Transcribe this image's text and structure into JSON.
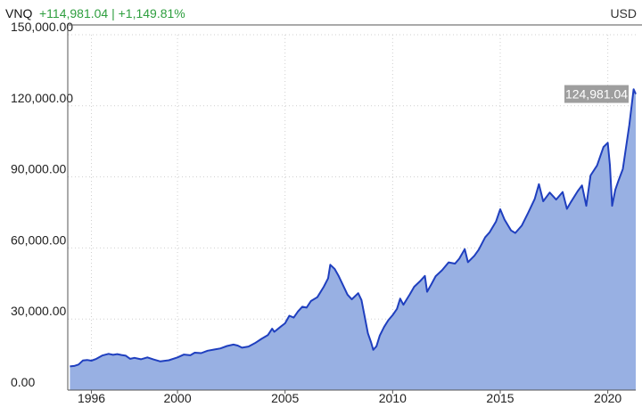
{
  "header": {
    "ticker": "VNQ",
    "change": "+114,981.04 | +1,149.81%",
    "currency": "USD"
  },
  "colors": {
    "line": "#1f3fbf",
    "fill": "#98b0e3",
    "positive": "#2e9e3e",
    "last_label_bg": "#9e9e9e"
  },
  "chart_data": {
    "type": "area",
    "title": "",
    "xlabel": "",
    "ylabel": "",
    "y_ticks": [
      "0.00",
      "30,000.00",
      "60,000.00",
      "90,000.00",
      "120,000.00",
      "150,000.00"
    ],
    "y_tick_values": [
      0,
      30000,
      60000,
      90000,
      120000,
      150000
    ],
    "x_ticks": [
      "1996",
      "2000",
      "2005",
      "2010",
      "2015",
      "2020"
    ],
    "x_tick_values": [
      1996,
      2000,
      2005,
      2010,
      2015,
      2020
    ],
    "xlim": [
      1994.9,
      2021.3
    ],
    "ylim": [
      0,
      150000
    ],
    "grid": true,
    "last_value_label": "124,981.04",
    "series": [
      {
        "values": [
          [
            1995.0,
            10000
          ],
          [
            1995.2,
            10200
          ],
          [
            1995.4,
            10800
          ],
          [
            1995.6,
            12500
          ],
          [
            1995.8,
            12700
          ],
          [
            1996.0,
            12400
          ],
          [
            1996.2,
            13100
          ],
          [
            1996.5,
            14600
          ],
          [
            1996.8,
            15300
          ],
          [
            1997.0,
            14900
          ],
          [
            1997.2,
            15200
          ],
          [
            1997.4,
            14800
          ],
          [
            1997.6,
            14500
          ],
          [
            1997.8,
            13200
          ],
          [
            1998.0,
            13600
          ],
          [
            1998.3,
            13000
          ],
          [
            1998.6,
            13800
          ],
          [
            1998.9,
            12900
          ],
          [
            1999.2,
            12100
          ],
          [
            1999.6,
            12600
          ],
          [
            2000.0,
            13800
          ],
          [
            2000.3,
            15000
          ],
          [
            2000.6,
            14700
          ],
          [
            2000.8,
            15800
          ],
          [
            2001.1,
            15600
          ],
          [
            2001.4,
            16600
          ],
          [
            2001.7,
            17100
          ],
          [
            2002.0,
            17600
          ],
          [
            2002.3,
            18600
          ],
          [
            2002.6,
            19200
          ],
          [
            2002.8,
            18800
          ],
          [
            2003.0,
            17900
          ],
          [
            2003.3,
            18400
          ],
          [
            2003.6,
            19800
          ],
          [
            2003.9,
            21600
          ],
          [
            2004.2,
            23200
          ],
          [
            2004.4,
            25900
          ],
          [
            2004.5,
            24600
          ],
          [
            2004.8,
            26800
          ],
          [
            2005.0,
            28200
          ],
          [
            2005.2,
            31400
          ],
          [
            2005.4,
            30600
          ],
          [
            2005.6,
            33200
          ],
          [
            2005.8,
            35200
          ],
          [
            2006.0,
            34800
          ],
          [
            2006.2,
            37600
          ],
          [
            2006.5,
            39200
          ],
          [
            2006.8,
            43600
          ],
          [
            2007.0,
            47200
          ],
          [
            2007.1,
            52900
          ],
          [
            2007.3,
            51200
          ],
          [
            2007.5,
            48000
          ],
          [
            2007.7,
            44200
          ],
          [
            2007.9,
            40300
          ],
          [
            2008.1,
            38300
          ],
          [
            2008.4,
            40900
          ],
          [
            2008.55,
            38000
          ],
          [
            2008.7,
            31000
          ],
          [
            2008.85,
            24000
          ],
          [
            2009.0,
            20100
          ],
          [
            2009.1,
            17000
          ],
          [
            2009.25,
            18500
          ],
          [
            2009.4,
            23000
          ],
          [
            2009.6,
            26600
          ],
          [
            2009.8,
            29500
          ],
          [
            2010.0,
            31600
          ],
          [
            2010.2,
            34300
          ],
          [
            2010.35,
            38600
          ],
          [
            2010.5,
            36000
          ],
          [
            2010.8,
            40400
          ],
          [
            2011.0,
            43600
          ],
          [
            2011.3,
            46200
          ],
          [
            2011.5,
            48200
          ],
          [
            2011.6,
            41500
          ],
          [
            2011.8,
            44700
          ],
          [
            2012.0,
            48100
          ],
          [
            2012.3,
            50600
          ],
          [
            2012.6,
            53900
          ],
          [
            2012.9,
            53400
          ],
          [
            2013.1,
            55500
          ],
          [
            2013.35,
            59500
          ],
          [
            2013.5,
            54000
          ],
          [
            2013.8,
            56700
          ],
          [
            2014.0,
            59300
          ],
          [
            2014.3,
            64500
          ],
          [
            2014.5,
            66500
          ],
          [
            2014.8,
            71100
          ],
          [
            2015.0,
            76300
          ],
          [
            2015.2,
            72000
          ],
          [
            2015.5,
            67400
          ],
          [
            2015.7,
            66300
          ],
          [
            2016.0,
            69400
          ],
          [
            2016.3,
            74900
          ],
          [
            2016.6,
            80600
          ],
          [
            2016.8,
            86900
          ],
          [
            2017.0,
            79700
          ],
          [
            2017.3,
            83400
          ],
          [
            2017.6,
            80400
          ],
          [
            2017.9,
            83600
          ],
          [
            2018.1,
            76500
          ],
          [
            2018.3,
            79600
          ],
          [
            2018.6,
            84000
          ],
          [
            2018.8,
            86400
          ],
          [
            2019.0,
            77800
          ],
          [
            2019.2,
            90600
          ],
          [
            2019.5,
            94800
          ],
          [
            2019.8,
            102600
          ],
          [
            2020.0,
            104400
          ],
          [
            2020.1,
            95000
          ],
          [
            2020.2,
            77800
          ],
          [
            2020.35,
            84600
          ],
          [
            2020.5,
            88500
          ],
          [
            2020.7,
            93300
          ],
          [
            2021.0,
            112000
          ],
          [
            2021.2,
            127000
          ],
          [
            2021.3,
            124981.04
          ]
        ]
      }
    ]
  }
}
